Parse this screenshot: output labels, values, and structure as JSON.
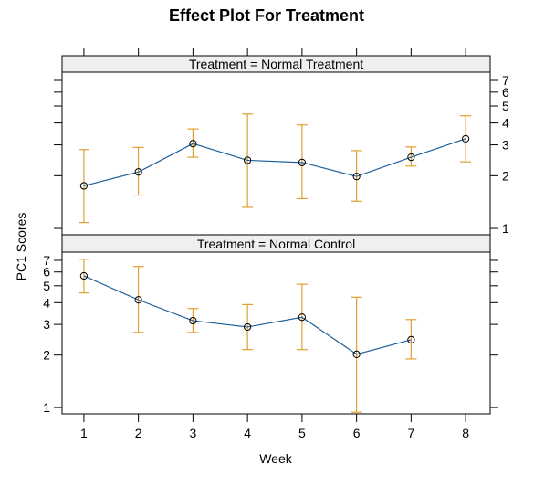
{
  "chart_data": {
    "type": "line",
    "title": "Effect Plot For Treatment",
    "xlabel": "Week",
    "ylabel": "PC1 Scores",
    "x_ticks": [
      1,
      2,
      3,
      4,
      5,
      6,
      7,
      8
    ],
    "y_ticks": [
      1,
      2,
      3,
      4,
      5,
      6,
      7
    ],
    "y_scale": "log",
    "xlim": [
      0.6,
      8.45
    ],
    "ylim": [
      0.92,
      7.8
    ],
    "colors": {
      "line": "#1f5f9a",
      "error_bar": "#e0a030",
      "strip": "#efefef"
    },
    "panels": [
      {
        "strip_label": "Treatment = Normal Treatment",
        "points": [
          {
            "x": 1,
            "y": 1.75,
            "lower": 1.08,
            "upper": 2.82
          },
          {
            "x": 2,
            "y": 2.1,
            "lower": 1.55,
            "upper": 2.9
          },
          {
            "x": 3,
            "y": 3.05,
            "lower": 2.55,
            "upper": 3.7
          },
          {
            "x": 4,
            "y": 2.45,
            "lower": 1.32,
            "upper": 4.5
          },
          {
            "x": 5,
            "y": 2.38,
            "lower": 1.48,
            "upper": 3.9
          },
          {
            "x": 6,
            "y": 1.98,
            "lower": 1.43,
            "upper": 2.78
          },
          {
            "x": 7,
            "y": 2.55,
            "lower": 2.27,
            "upper": 2.92
          },
          {
            "x": 8,
            "y": 3.25,
            "lower": 2.4,
            "upper": 4.4
          }
        ]
      },
      {
        "strip_label": "Treatment = Normal Control",
        "points": [
          {
            "x": 1,
            "y": 5.7,
            "lower": 4.55,
            "upper": 7.1
          },
          {
            "x": 2,
            "y": 4.15,
            "lower": 2.7,
            "upper": 6.45
          },
          {
            "x": 3,
            "y": 3.15,
            "lower": 2.7,
            "upper": 3.7
          },
          {
            "x": 4,
            "y": 2.9,
            "lower": 2.15,
            "upper": 3.9
          },
          {
            "x": 5,
            "y": 3.3,
            "lower": 2.15,
            "upper": 5.1
          },
          {
            "x": 6,
            "y": 2.02,
            "lower": 0.94,
            "upper": 4.3
          },
          {
            "x": 7,
            "y": 2.45,
            "lower": 1.9,
            "upper": 3.2
          }
        ]
      }
    ]
  }
}
